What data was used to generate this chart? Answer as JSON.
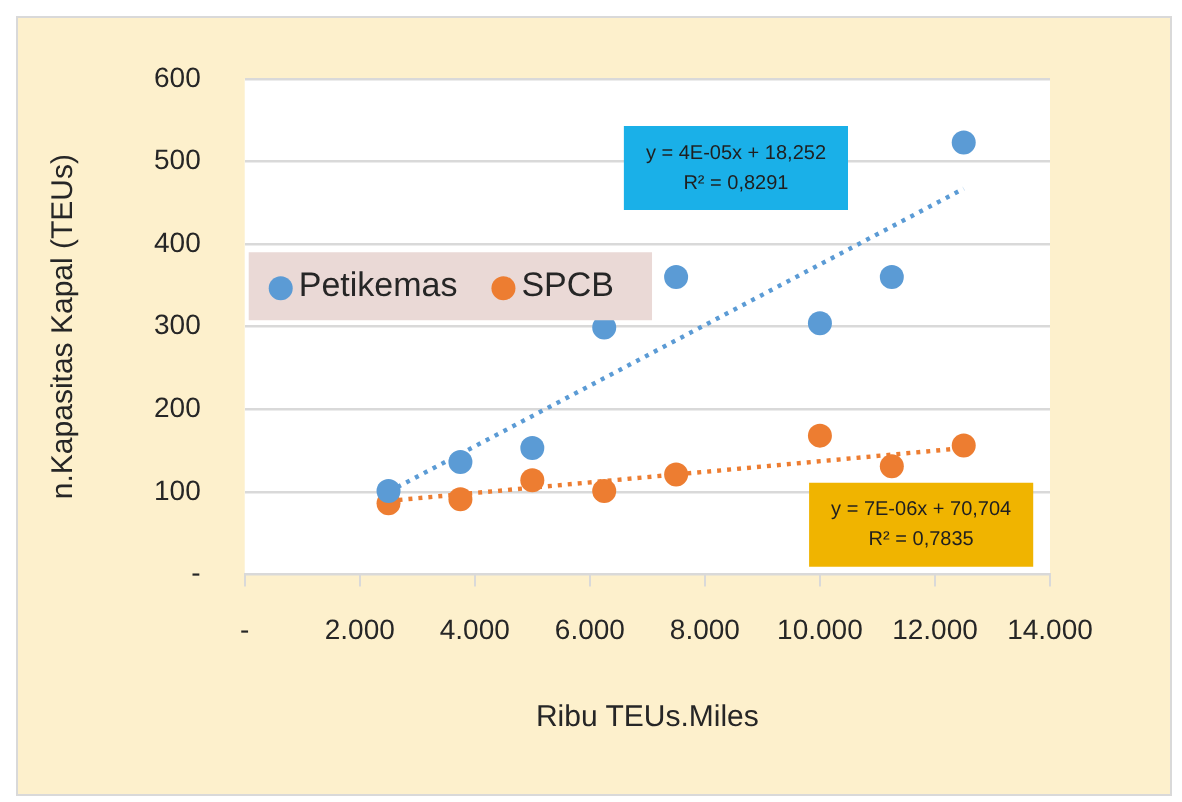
{
  "chart_data": {
    "type": "scatter",
    "xlabel": "Ribu TEUs.Miles",
    "ylabel": "n.Kapasitas Kapal (TEUs)",
    "x": [
      2500,
      3750,
      5000,
      6250,
      7500,
      10000,
      11250,
      12500
    ],
    "series": [
      {
        "name": "Petikemas",
        "color": "#5b9bd5",
        "values": [
          101,
          136,
          153,
          299,
          360,
          304,
          360,
          523
        ]
      },
      {
        "name": "SPCB",
        "color": "#ed7d31",
        "values": [
          86,
          91,
          114,
          101,
          121,
          168,
          131,
          156
        ]
      },
      {
        "type": "line",
        "color": "#5b9bd5",
        "values": [
          100,
          null,
          null,
          null,
          null,
          null,
          null,
          467
        ],
        "line_style": "dotted",
        "marker": "none"
      },
      {
        "type": "line",
        "color": "#ed7d31",
        "values": [
          89,
          null,
          null,
          null,
          null,
          null,
          null,
          153
        ],
        "line_style": "dotted",
        "marker": "none"
      }
    ],
    "xlim": [
      0,
      14000
    ],
    "xticks": [
      {
        "value": 0,
        "label": "-"
      },
      {
        "value": 2000,
        "label": "2.000"
      },
      {
        "value": 4000,
        "label": "4.000"
      },
      {
        "value": 6000,
        "label": "6.000"
      },
      {
        "value": 8000,
        "label": "8.000"
      },
      {
        "value": 10000,
        "label": "10.000"
      },
      {
        "value": 12000,
        "label": "12.000"
      },
      {
        "value": 14000,
        "label": "14.000"
      }
    ],
    "ylim": [
      0,
      600
    ],
    "yticks": [
      {
        "value": 0,
        "label": "-"
      },
      100,
      200,
      300,
      400,
      500,
      600
    ],
    "grid": "y",
    "legend": "top left",
    "marker": "circle",
    "annotations": [
      "y = 4E-05x + 18,252\nR² = 0,8291",
      "y = 7E-06x + 70,704\nR² = 0,7835"
    ]
  }
}
